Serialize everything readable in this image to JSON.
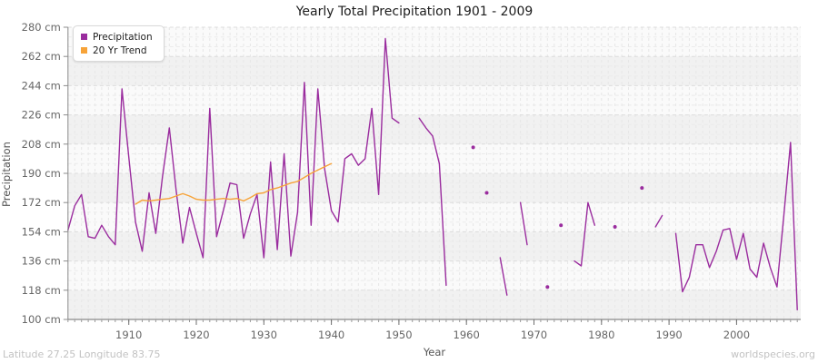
{
  "header": {
    "title": "Yearly Total Precipitation 1901 - 2009"
  },
  "legend": {
    "items": [
      {
        "label": "Precipitation",
        "color": "#9a2c9e"
      },
      {
        "label": "20 Yr Trend",
        "color": "#f7a338"
      }
    ]
  },
  "axes": {
    "y": {
      "title": "Precipitation",
      "tick_suffix": " cm",
      "ticks": [
        100,
        118,
        136,
        154,
        172,
        190,
        208,
        226,
        244,
        262,
        280
      ]
    },
    "x": {
      "title": "Year",
      "ticks": [
        1910,
        1920,
        1930,
        1940,
        1950,
        1960,
        1970,
        1980,
        1990,
        2000
      ]
    }
  },
  "footer": {
    "left": "Latitude 27.25 Longitude 83.75",
    "right": "worldspecies.org"
  },
  "chart_data": {
    "type": "line",
    "title": "Yearly Total Precipitation 1901 - 2009",
    "xlabel": "Year",
    "ylabel": "Precipitation",
    "ylim": [
      100,
      280
    ],
    "xlim": [
      1901,
      2009
    ],
    "y_major_step": 18,
    "y_minor_step": 6,
    "grid": "dashed",
    "legend_position": "top-left",
    "plot_bg_band_colors": [
      "#f1f1f1",
      "#fafafa"
    ],
    "series": [
      {
        "name": "Precipitation",
        "color": "#9a2c9e",
        "start_year": 1901,
        "values": [
          155,
          170,
          177,
          151,
          150,
          158,
          151,
          146,
          242,
          200,
          160,
          142,
          178,
          153,
          188,
          218,
          180,
          147,
          169,
          153,
          138,
          230,
          151,
          167,
          184,
          183,
          150,
          165,
          177,
          138,
          197,
          143,
          202,
          139,
          166,
          246,
          158,
          242,
          193,
          167,
          160,
          199,
          202,
          195,
          199,
          230,
          177,
          273,
          224,
          221,
          null,
          null,
          224,
          218,
          213,
          196,
          121,
          null,
          null,
          null,
          206,
          null,
          178,
          null,
          138,
          115,
          null,
          172,
          146,
          null,
          null,
          120,
          null,
          158,
          null,
          136,
          133,
          172,
          158,
          null,
          null,
          157,
          null,
          null,
          null,
          181,
          null,
          157,
          164,
          null,
          153,
          117,
          126,
          146,
          146,
          132,
          142,
          155,
          156,
          137,
          153,
          131,
          126,
          147,
          132,
          120,
          164,
          209,
          106
        ]
      },
      {
        "name": "20 Yr Trend",
        "color": "#f7a338",
        "start_year": 1911,
        "values": [
          171,
          173.5,
          173,
          173.5,
          174,
          174.5,
          176,
          177.5,
          176,
          174,
          173.5,
          173.5,
          174,
          174.5,
          174,
          174.5,
          173,
          175,
          177.5,
          178,
          180,
          181,
          182.5,
          184,
          185,
          187.5,
          190,
          192,
          194,
          196
        ]
      }
    ]
  }
}
